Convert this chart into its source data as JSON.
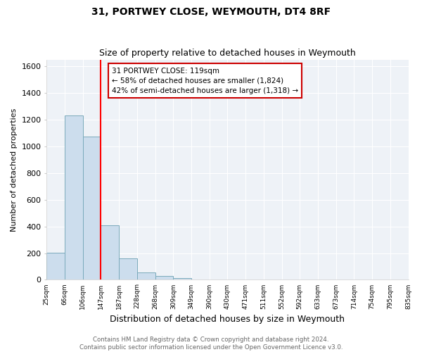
{
  "title": "31, PORTWEY CLOSE, WEYMOUTH, DT4 8RF",
  "subtitle": "Size of property relative to detached houses in Weymouth",
  "xlabel": "Distribution of detached houses by size in Weymouth",
  "ylabel": "Number of detached properties",
  "bin_labels": [
    "25sqm",
    "66sqm",
    "106sqm",
    "147sqm",
    "187sqm",
    "228sqm",
    "268sqm",
    "309sqm",
    "349sqm",
    "390sqm",
    "430sqm",
    "471sqm",
    "511sqm",
    "552sqm",
    "592sqm",
    "633sqm",
    "673sqm",
    "714sqm",
    "754sqm",
    "795sqm",
    "835sqm"
  ],
  "bar_values": [
    205,
    1230,
    1075,
    410,
    160,
    55,
    30,
    15,
    0,
    0,
    0,
    0,
    0,
    0,
    0,
    0,
    0,
    0,
    0,
    0
  ],
  "bar_color": "#ccdded",
  "bar_edge_color": "#7aaabb",
  "red_line_x": 2.5,
  "ylim": [
    0,
    1650
  ],
  "yticks": [
    0,
    200,
    400,
    600,
    800,
    1000,
    1200,
    1400,
    1600
  ],
  "annotation_text": "31 PORTWEY CLOSE: 119sqm\n← 58% of detached houses are smaller (1,824)\n42% of semi-detached houses are larger (1,318) →",
  "annotation_box_color": "#ffffff",
  "annotation_box_edge": "#cc0000",
  "footnote": "Contains HM Land Registry data © Crown copyright and database right 2024.\nContains public sector information licensed under the Open Government Licence v3.0.",
  "bg_color": "#ffffff",
  "plot_bg_color": "#eef2f7",
  "grid_color": "#ffffff"
}
